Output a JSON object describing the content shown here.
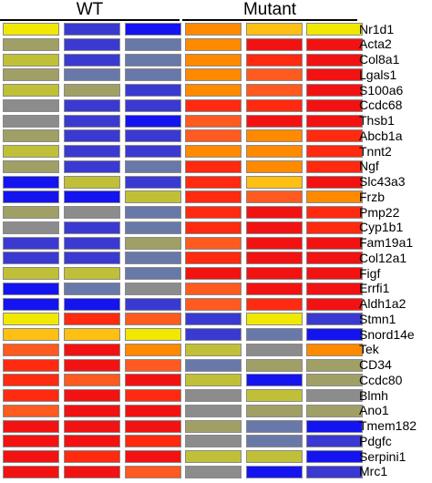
{
  "chart_data": {
    "type": "heatmap",
    "column_groups": [
      {
        "label": "WT",
        "samples": 3
      },
      {
        "label": "Mutant",
        "samples": 3
      }
    ],
    "colors": {
      "b": "#1414f0",
      "s": "#3a3ad2",
      "n": "#6878a8",
      "g": "#8c8c8c",
      "o": "#a0a066",
      "k": "#c0c038",
      "y": "#f0e800",
      "a": "#ffc014",
      "e": "#ff8a00",
      "p": "#ff5a20",
      "r": "#ff2a10",
      "d": "#f21212"
    },
    "color_scale_order": [
      "b",
      "s",
      "n",
      "g",
      "o",
      "k",
      "y",
      "a",
      "e",
      "p",
      "r",
      "d"
    ],
    "genes": [
      "Nr1d1",
      "Acta2",
      "Col8a1",
      "Lgals1",
      "S100a6",
      "Ccdc68",
      "Thsb1",
      "Abcb1a",
      "Tnnt2",
      "Ngf",
      "Slc43a3",
      "Frzb",
      "Pmp22",
      "Cyp1b1",
      "Fam19a1",
      "Col12a1",
      "Figf",
      "Errfi1",
      "Aldh1a2",
      "Stmn1",
      "Snord14e",
      "Tek",
      "CD34",
      "Ccdc80",
      "Blmh",
      "Ano1",
      "Tmem182",
      "Pdgfc",
      "Serpini1",
      "Mrc1"
    ],
    "cells": [
      "ysbeay",
      "osnedd",
      "ksnerd",
      "onnepd",
      "kosepd",
      "gssrrd",
      "gsbpdd",
      "ossper",
      "ksseer",
      "osnrer",
      "bksrad",
      "bbkrpe",
      "ognrdr",
      "gsnrdr",
      "ssopdd",
      "ssnrdd",
      "kknddd",
      "bngpdd",
      "bbsprd",
      "yrpsys",
      "aaysnb",
      "pdekge",
      "rdpnoo",
      "rpdkbo",
      "rdrgkg",
      "pddgoo",
      "dddonb",
      "ddrgns",
      "drdkkb",
      "ddpgbs"
    ]
  }
}
